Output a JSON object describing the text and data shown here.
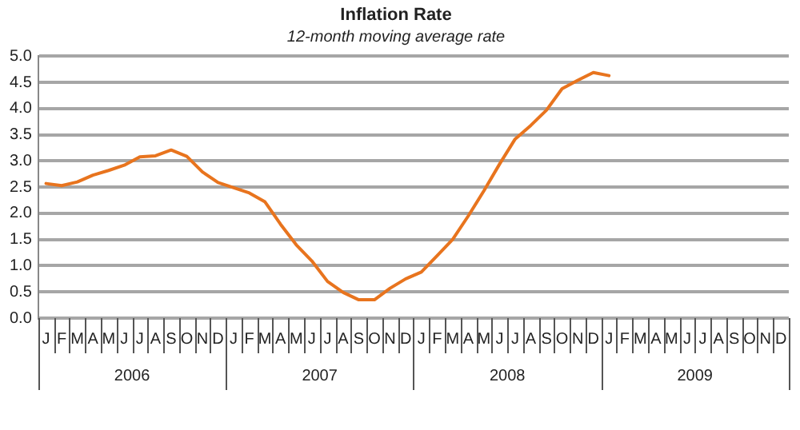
{
  "chart_data": {
    "type": "line",
    "title": "Inflation Rate",
    "subtitle": "12-month moving average rate",
    "categories": [
      "J",
      "F",
      "M",
      "A",
      "M",
      "J",
      "J",
      "A",
      "S",
      "O",
      "N",
      "D",
      "J",
      "F",
      "M",
      "A",
      "M",
      "J",
      "J",
      "A",
      "S",
      "O",
      "N",
      "D",
      "J",
      "F",
      "M",
      "A",
      "M",
      "J",
      "J",
      "A",
      "S",
      "O",
      "N",
      "D",
      "J",
      "F",
      "M",
      "A",
      "M",
      "J",
      "J",
      "A",
      "S",
      "O",
      "N",
      "D"
    ],
    "series": [
      {
        "color": "#e8741e",
        "values": [
          2.57,
          2.53,
          2.6,
          2.73,
          2.82,
          2.92,
          3.08,
          3.1,
          3.21,
          3.09,
          2.79,
          2.59,
          2.49,
          2.39,
          2.22,
          1.79,
          1.4,
          1.09,
          0.7,
          0.49,
          0.35,
          0.35,
          0.57,
          0.75,
          0.88,
          1.19,
          1.5,
          1.95,
          2.43,
          2.94,
          3.42,
          3.68,
          3.97,
          4.38,
          4.54,
          4.69,
          4.63,
          null,
          null,
          null,
          null,
          null,
          null,
          null,
          null,
          null,
          null,
          null
        ]
      }
    ],
    "annotations": [
      "2006",
      "2007",
      "2008",
      "2009"
    ],
    "ylim": [
      0,
      5
    ],
    "yticks": [
      {
        "value": 0,
        "label": "0.0"
      },
      {
        "value": 0.5,
        "label": "0.5"
      },
      {
        "value": 1,
        "label": "1.0"
      },
      {
        "value": 1.5,
        "label": "1.5"
      },
      {
        "value": 2,
        "label": "2.0"
      },
      {
        "value": 2.5,
        "label": "2.5"
      },
      {
        "value": 3,
        "label": "3.0"
      },
      {
        "value": 3.5,
        "label": "3.5"
      },
      {
        "value": 4,
        "label": "4.0"
      },
      {
        "value": 4.5,
        "label": "4.5"
      },
      {
        "value": 5,
        "label": "5.0"
      }
    ],
    "grid": "y",
    "legend": false,
    "marker": "none",
    "line_style": "solid"
  }
}
